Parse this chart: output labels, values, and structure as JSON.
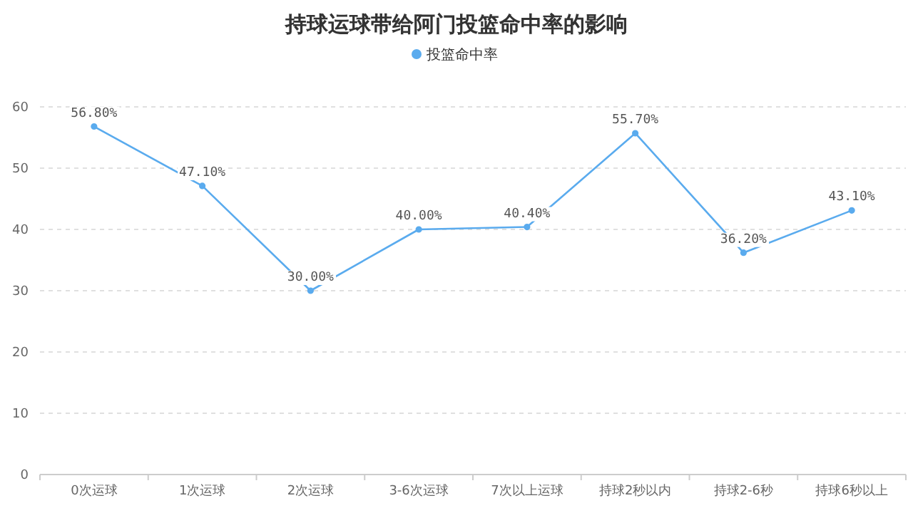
{
  "chart_data": {
    "type": "line",
    "title": "持球运球带给阿门投篮命中率的影响",
    "categories": [
      "0次运球",
      "1次运球",
      "2次运球",
      "3-6次运球",
      "7次以上运球",
      "持球2秒以内",
      "持球2-6秒",
      "持球6秒以上"
    ],
    "series": [
      {
        "name": "投篮命中率",
        "color": "#5aabee",
        "values": [
          56.8,
          47.1,
          30.0,
          40.0,
          40.4,
          55.7,
          36.2,
          43.1
        ],
        "value_labels": [
          "56.80%",
          "47.10%",
          "30.00%",
          "40.00%",
          "40.40%",
          "55.70%",
          "36.20%",
          "43.10%"
        ]
      }
    ],
    "ylim": [
      0,
      60
    ],
    "yticks": [
      0,
      10,
      20,
      30,
      40,
      50,
      60
    ],
    "grid": "y",
    "legend": "top",
    "marker": "circle",
    "line_style": "solid"
  }
}
